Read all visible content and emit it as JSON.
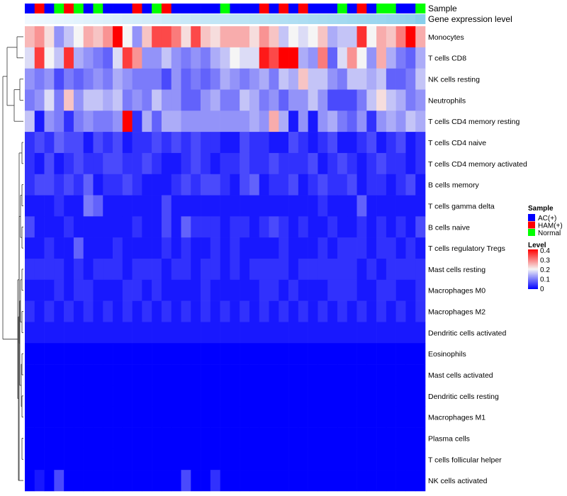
{
  "chart_data": {
    "type": "heatmap",
    "annotation_tracks": [
      "Sample",
      "Gene expression level"
    ],
    "sample_groups": [
      "AC(+)",
      "HAM(+)",
      "AC(+)",
      "Normal",
      "HAM(+)",
      "Normal",
      "AC(+)",
      "Normal",
      "AC(+)",
      "AC(+)",
      "AC(+)",
      "HAM(+)",
      "AC(+)",
      "Normal",
      "HAM(+)",
      "AC(+)",
      "AC(+)",
      "AC(+)",
      "AC(+)",
      "AC(+)",
      "Normal",
      "AC(+)",
      "AC(+)",
      "AC(+)",
      "HAM(+)",
      "AC(+)",
      "HAM(+)",
      "AC(+)",
      "HAM(+)",
      "AC(+)",
      "AC(+)",
      "AC(+)",
      "Normal",
      "AC(+)",
      "HAM(+)",
      "AC(+)",
      "Normal",
      "Normal",
      "AC(+)",
      "AC(+)",
      "Normal"
    ],
    "gene_expression_level": [
      0,
      0.03,
      0.05,
      0.08,
      0.1,
      0.12,
      0.15,
      0.17,
      0.19,
      0.21,
      0.24,
      0.26,
      0.28,
      0.3,
      0.33,
      0.35,
      0.37,
      0.4,
      0.42,
      0.44,
      0.46,
      0.49,
      0.51,
      0.53,
      0.55,
      0.58,
      0.6,
      0.62,
      0.64,
      0.67,
      0.69,
      0.71,
      0.73,
      0.76,
      0.78,
      0.8,
      0.82,
      0.85,
      0.87,
      0.9,
      1
    ],
    "rows": [
      "Monocytes",
      "T cells CD8",
      "NK cells resting",
      "Neutrophils",
      "T cells CD4 memory resting",
      "T cells CD4 naive",
      "T cells CD4 memory activated",
      "B cells memory",
      "T cells gamma delta",
      "B cells naive",
      "T cells regulatory  Tregs",
      "Mast cells resting",
      "Macrophages M0",
      "Macrophages M2",
      "Dendritic cells activated",
      "Eosinophils",
      "Mast cells activated",
      "Dendritic cells resting",
      "Macrophages M1",
      "Plasma cells",
      "T cells follicular helper",
      "NK cells activated"
    ],
    "values": [
      [
        0.25,
        0.28,
        0.22,
        0.12,
        0.16,
        0.2,
        0.26,
        0.24,
        0.28,
        0.4,
        0.2,
        0.12,
        0.24,
        0.34,
        0.34,
        0.3,
        0.22,
        0.34,
        0.24,
        0.22,
        0.26,
        0.26,
        0.26,
        0.22,
        0.28,
        0.24,
        0.16,
        0.2,
        0.18,
        0.2,
        0.24,
        0.14,
        0.16,
        0.16,
        0.36,
        0.2,
        0.26,
        0.24,
        0.3,
        0.4,
        0.26
      ],
      [
        0.18,
        0.35,
        0.2,
        0.16,
        0.36,
        0.14,
        0.12,
        0.1,
        0.08,
        0.18,
        0.35,
        0.28,
        0.12,
        0.12,
        0.16,
        0.12,
        0.1,
        0.12,
        0.1,
        0.14,
        0.16,
        0.2,
        0.18,
        0.18,
        0.38,
        0.34,
        0.4,
        0.4,
        0.14,
        0.12,
        0.3,
        0.08,
        0.18,
        0.28,
        0.2,
        0.12,
        0.26,
        0.14,
        0.1,
        0.08,
        0.14
      ],
      [
        0.12,
        0.1,
        0.12,
        0.06,
        0.1,
        0.08,
        0.1,
        0.12,
        0.1,
        0.14,
        0.12,
        0.1,
        0.1,
        0.1,
        0.06,
        0.12,
        0.08,
        0.1,
        0.08,
        0.1,
        0.14,
        0.12,
        0.1,
        0.12,
        0.14,
        0.1,
        0.16,
        0.14,
        0.24,
        0.16,
        0.16,
        0.12,
        0.1,
        0.16,
        0.16,
        0.14,
        0.16,
        0.08,
        0.08,
        0.1,
        0.16
      ],
      [
        0.1,
        0.12,
        0.18,
        0.1,
        0.24,
        0.12,
        0.16,
        0.16,
        0.14,
        0.16,
        0.1,
        0.12,
        0.1,
        0.16,
        0.12,
        0.12,
        0.08,
        0.08,
        0.12,
        0.14,
        0.1,
        0.1,
        0.16,
        0.14,
        0.1,
        0.12,
        0.08,
        0.12,
        0.12,
        0.16,
        0.12,
        0.06,
        0.06,
        0.06,
        0.1,
        0.16,
        0.22,
        0.16,
        0.14,
        0.1,
        0.12
      ],
      [
        0.16,
        0.02,
        0.12,
        0.1,
        0.04,
        0.1,
        0.12,
        0.1,
        0.1,
        0.12,
        0.4,
        0.04,
        0.14,
        0.08,
        0.14,
        0.14,
        0.12,
        0.12,
        0.12,
        0.12,
        0.12,
        0.12,
        0.12,
        0.14,
        0.12,
        0.26,
        0.14,
        0.02,
        0.12,
        0.02,
        0.12,
        0.14,
        0.1,
        0.08,
        0.12,
        0.04,
        0.12,
        0.14,
        0.12,
        0.16,
        0.14
      ],
      [
        0.04,
        0.06,
        0.04,
        0.08,
        0.06,
        0.06,
        0.02,
        0.06,
        0.04,
        0.06,
        0.02,
        0.04,
        0.04,
        0.06,
        0.04,
        0.06,
        0.04,
        0.06,
        0.04,
        0.04,
        0.02,
        0.02,
        0.06,
        0.04,
        0.04,
        0.02,
        0.02,
        0.06,
        0.04,
        0.02,
        0.04,
        0.06,
        0.02,
        0.02,
        0.04,
        0.06,
        0.02,
        0.04,
        0.06,
        0.02,
        0.04
      ],
      [
        0.04,
        0.02,
        0.06,
        0.02,
        0.04,
        0.06,
        0.04,
        0.04,
        0.06,
        0.06,
        0.04,
        0.04,
        0.06,
        0.04,
        0.02,
        0.02,
        0.04,
        0.06,
        0.04,
        0.02,
        0.04,
        0.04,
        0.06,
        0.04,
        0.04,
        0.06,
        0.04,
        0.04,
        0.04,
        0.06,
        0.02,
        0.04,
        0.06,
        0.04,
        0.02,
        0.04,
        0.06,
        0.04,
        0.04,
        0.02,
        0.04
      ],
      [
        0.04,
        0.06,
        0.06,
        0.04,
        0.06,
        0.04,
        0.08,
        0.02,
        0.04,
        0.04,
        0.06,
        0.04,
        0.02,
        0.02,
        0.02,
        0.04,
        0.06,
        0.04,
        0.06,
        0.06,
        0.04,
        0.02,
        0.06,
        0.08,
        0.02,
        0.04,
        0.04,
        0.06,
        0.02,
        0.04,
        0.06,
        0.04,
        0.04,
        0.06,
        0.02,
        0.04,
        0.04,
        0.02,
        0.04,
        0.06,
        0.02
      ],
      [
        0.02,
        0.02,
        0.02,
        0.04,
        0.02,
        0.02,
        0.1,
        0.08,
        0.02,
        0.02,
        0.02,
        0.02,
        0.02,
        0.02,
        0.06,
        0.02,
        0.02,
        0.02,
        0.02,
        0.02,
        0.02,
        0.02,
        0.02,
        0.02,
        0.02,
        0.02,
        0.02,
        0.02,
        0.02,
        0.02,
        0.04,
        0.02,
        0.02,
        0.02,
        0.08,
        0.02,
        0.02,
        0.02,
        0.02,
        0.02,
        0.02
      ],
      [
        0.06,
        0.02,
        0.02,
        0.02,
        0.04,
        0.02,
        0.02,
        0.02,
        0.02,
        0.02,
        0.02,
        0.04,
        0.02,
        0.02,
        0.06,
        0.02,
        0.08,
        0.04,
        0.04,
        0.04,
        0.02,
        0.04,
        0.04,
        0.02,
        0.04,
        0.06,
        0.04,
        0.02,
        0.04,
        0.02,
        0.02,
        0.04,
        0.02,
        0.02,
        0.04,
        0.02,
        0.04,
        0.02,
        0.04,
        0.02,
        0.06
      ],
      [
        0.02,
        0.02,
        0.04,
        0.02,
        0.02,
        0.08,
        0.02,
        0.02,
        0.02,
        0.04,
        0.02,
        0.02,
        0.02,
        0.02,
        0.04,
        0.02,
        0.04,
        0.02,
        0.02,
        0.04,
        0.02,
        0.04,
        0.02,
        0.02,
        0.02,
        0.02,
        0.04,
        0.02,
        0.02,
        0.02,
        0.04,
        0.02,
        0.04,
        0.04,
        0.04,
        0.02,
        0.04,
        0.04,
        0.02,
        0.04,
        0.02
      ],
      [
        0.04,
        0.04,
        0.04,
        0.04,
        0.02,
        0.04,
        0.02,
        0.04,
        0.04,
        0.04,
        0.02,
        0.04,
        0.04,
        0.04,
        0.02,
        0.04,
        0.04,
        0.02,
        0.04,
        0.04,
        0.02,
        0.04,
        0.02,
        0.04,
        0.04,
        0.04,
        0.04,
        0.02,
        0.04,
        0.04,
        0.04,
        0.04,
        0.04,
        0.04,
        0.02,
        0.04,
        0.02,
        0.04,
        0.04,
        0.04,
        0.04
      ],
      [
        0.02,
        0.02,
        0.02,
        0.04,
        0.02,
        0.04,
        0.04,
        0.02,
        0.02,
        0.02,
        0.04,
        0.04,
        0.02,
        0.04,
        0.02,
        0.02,
        0.02,
        0.02,
        0.04,
        0.02,
        0.02,
        0.02,
        0.02,
        0.02,
        0.04,
        0.04,
        0.02,
        0.04,
        0.02,
        0.02,
        0.02,
        0.04,
        0.04,
        0.04,
        0.02,
        0.02,
        0.04,
        0.04,
        0.02,
        0.02,
        0.04
      ],
      [
        0.04,
        0.02,
        0.04,
        0.02,
        0.04,
        0.02,
        0.04,
        0.02,
        0.04,
        0.02,
        0.04,
        0.02,
        0.04,
        0.02,
        0.04,
        0.02,
        0.04,
        0.02,
        0.04,
        0.02,
        0.04,
        0.02,
        0.04,
        0.02,
        0.04,
        0.02,
        0.04,
        0.02,
        0.04,
        0.02,
        0.04,
        0.02,
        0.04,
        0.02,
        0.04,
        0.02,
        0.04,
        0.02,
        0.04,
        0.02,
        0.04
      ],
      [
        0.02,
        0.02,
        0.02,
        0.02,
        0.02,
        0.02,
        0.02,
        0.02,
        0.02,
        0.02,
        0.02,
        0.02,
        0.02,
        0.02,
        0.02,
        0.02,
        0.02,
        0.02,
        0.02,
        0.02,
        0.02,
        0.02,
        0.02,
        0.02,
        0.02,
        0.02,
        0.02,
        0.02,
        0.02,
        0.02,
        0.02,
        0.02,
        0.02,
        0.02,
        0.02,
        0.02,
        0.02,
        0.02,
        0.02,
        0.02,
        0.02
      ],
      [
        0,
        0,
        0,
        0,
        0,
        0,
        0,
        0,
        0,
        0,
        0,
        0,
        0,
        0,
        0,
        0,
        0,
        0,
        0,
        0,
        0,
        0,
        0,
        0,
        0,
        0,
        0,
        0,
        0,
        0,
        0,
        0,
        0,
        0,
        0,
        0,
        0,
        0,
        0,
        0,
        0
      ],
      [
        0,
        0,
        0,
        0,
        0,
        0,
        0,
        0,
        0,
        0,
        0,
        0,
        0,
        0,
        0,
        0,
        0,
        0,
        0,
        0,
        0,
        0,
        0,
        0,
        0,
        0,
        0,
        0,
        0,
        0,
        0,
        0,
        0,
        0,
        0,
        0,
        0,
        0,
        0,
        0,
        0
      ],
      [
        0,
        0,
        0,
        0,
        0,
        0,
        0,
        0,
        0,
        0,
        0,
        0,
        0,
        0,
        0,
        0,
        0,
        0,
        0,
        0,
        0,
        0,
        0,
        0,
        0,
        0,
        0,
        0,
        0,
        0,
        0,
        0,
        0,
        0,
        0,
        0,
        0,
        0,
        0,
        0,
        0
      ],
      [
        0,
        0,
        0,
        0,
        0,
        0,
        0,
        0,
        0,
        0,
        0,
        0,
        0,
        0,
        0,
        0,
        0,
        0,
        0,
        0,
        0,
        0,
        0,
        0,
        0,
        0,
        0,
        0,
        0,
        0,
        0,
        0,
        0,
        0,
        0,
        0,
        0,
        0,
        0,
        0,
        0
      ],
      [
        0,
        0,
        0,
        0,
        0,
        0,
        0,
        0,
        0,
        0,
        0,
        0,
        0,
        0,
        0,
        0,
        0,
        0,
        0,
        0,
        0,
        0,
        0,
        0,
        0,
        0,
        0,
        0,
        0,
        0,
        0,
        0,
        0,
        0,
        0,
        0,
        0,
        0,
        0,
        0,
        0
      ],
      [
        0,
        0,
        0,
        0,
        0,
        0,
        0,
        0,
        0,
        0,
        0,
        0,
        0,
        0,
        0,
        0,
        0,
        0,
        0,
        0,
        0,
        0,
        0,
        0,
        0,
        0,
        0,
        0,
        0,
        0,
        0,
        0,
        0,
        0,
        0,
        0,
        0,
        0,
        0,
        0,
        0
      ],
      [
        0,
        0.02,
        0,
        0.06,
        0,
        0,
        0,
        0,
        0,
        0,
        0,
        0,
        0,
        0,
        0,
        0,
        0.06,
        0,
        0,
        0.04,
        0,
        0,
        0,
        0,
        0,
        0,
        0,
        0,
        0,
        0,
        0,
        0,
        0,
        0,
        0,
        0,
        0,
        0,
        0,
        0,
        0
      ]
    ],
    "color_scale": {
      "min": 0,
      "mid": 0.2,
      "max": 0.4,
      "low": "#0000ff",
      "middle": "#f5f5f5",
      "high": "#ff0000"
    },
    "annotation_colors": {
      "AC(+)": "#0000ff",
      "HAM(+)": "#ff0000",
      "Normal": "#00ff00",
      "expr_low": "#f0f8ff",
      "expr_high": "#87ceeb"
    },
    "dendrogram_order": [
      [
        0,
        1
      ],
      [
        2,
        3
      ],
      [
        5,
        6
      ],
      [
        7,
        8
      ],
      [
        9,
        10
      ],
      [
        11,
        12
      ],
      [
        13,
        14
      ],
      [
        15,
        16
      ],
      [
        17,
        18
      ],
      [
        19,
        20
      ]
    ]
  },
  "legend": {
    "sample_title": "Sample",
    "sample_entries": [
      {
        "label": "AC(+)",
        "color": "#0000ff"
      },
      {
        "label": "HAM(+)",
        "color": "#ff0000"
      },
      {
        "label": "Normal",
        "color": "#00ff00"
      }
    ],
    "level_title": "Level",
    "level_ticks": [
      "0.4",
      "0.3",
      "0.2",
      "0.1",
      "0"
    ]
  }
}
